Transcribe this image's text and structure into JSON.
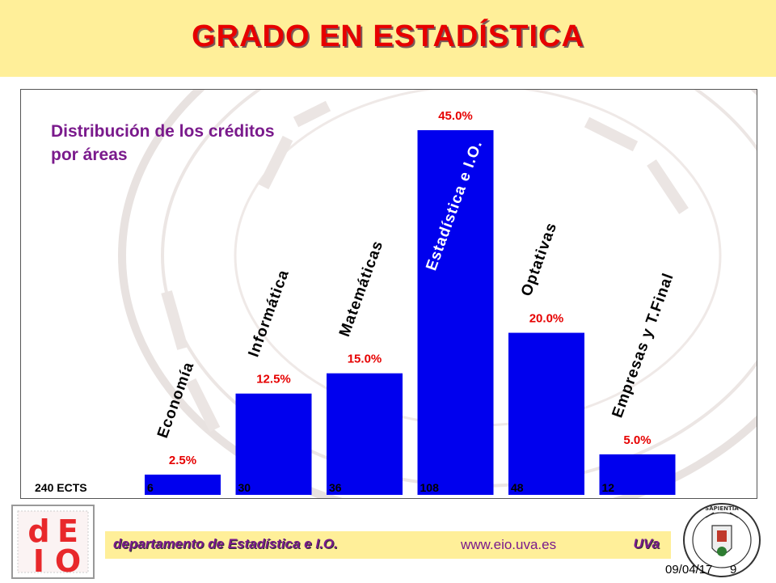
{
  "header": {
    "title": "GRADO EN ESTADÍSTICA"
  },
  "chart_data": {
    "type": "bar",
    "title": "Distribución  de los créditos por áreas",
    "categories": [
      "Economía",
      "Informática",
      "Matemáticas",
      "Estadística e I.O.",
      "Optativas",
      "Empresas y T.Final"
    ],
    "values": [
      6,
      30,
      36,
      108,
      48,
      12
    ],
    "value_labels": [
      "6",
      "30",
      "36",
      "108",
      "48",
      "12"
    ],
    "percent_labels": [
      "2.5%",
      "12.5%",
      "15.0%",
      "45.0%",
      "20.0%",
      "5.0%"
    ],
    "total_label": "240 ECTS",
    "ylim": [
      0,
      108
    ],
    "bar_color": "#0000ee",
    "label_color": "#e60000",
    "grid": false,
    "legend": "none"
  },
  "footer": {
    "department": "departamento  de Estadística e I.O.",
    "website": "www.eio.uva.es",
    "university": "UVa",
    "date": "09/04/17",
    "page": "9"
  },
  "logos": {
    "left_letters": [
      "d",
      "E",
      "I",
      "O"
    ],
    "right_seal_text": [
      "DOMVM",
      "SAPIENTIA",
      "AEDIFICAVIT"
    ]
  },
  "colors": {
    "title": "#e60000",
    "header_band": "#ffef99",
    "accent_purple": "#7a1a8c",
    "bar_blue": "#0000ee"
  }
}
